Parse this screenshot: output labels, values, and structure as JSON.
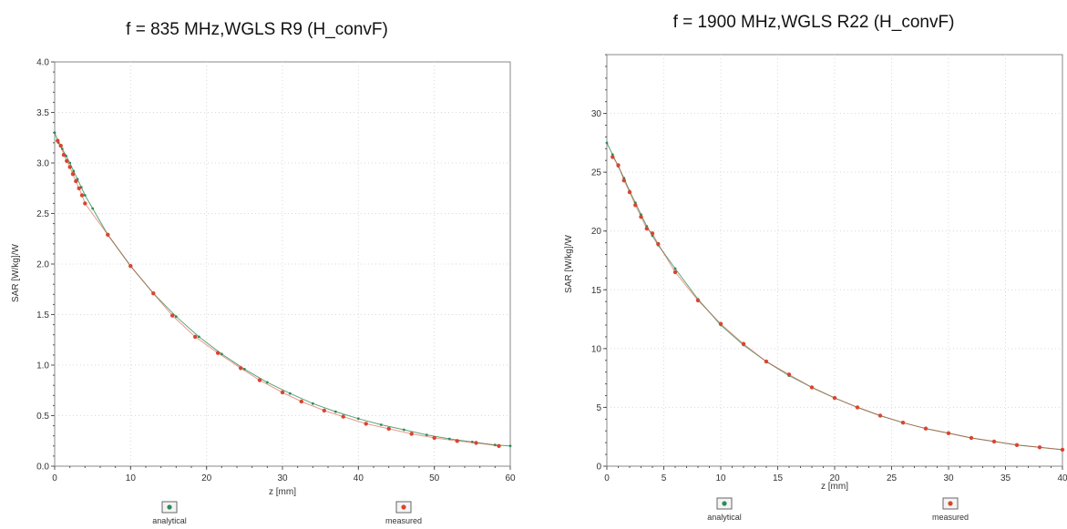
{
  "chart_data": [
    {
      "type": "line",
      "title": "f = 835 MHz,WGLS R9 (H_convF)",
      "xlabel": "z [mm]",
      "ylabel": "SAR [W/kg]/W",
      "xlim": [
        0,
        60
      ],
      "ylim": [
        0,
        4.0
      ],
      "xticks": [
        "0",
        "10",
        "20",
        "30",
        "40",
        "50",
        "60"
      ],
      "yticks": [
        "0.0",
        "0.5",
        "1.0",
        "1.5",
        "2.0",
        "2.5",
        "3.0",
        "3.5",
        "4.0"
      ],
      "grid": true,
      "series": [
        {
          "name": "analytical",
          "color": "#2e8b57",
          "x": [
            0,
            0.5,
            1,
            1.5,
            2,
            2.5,
            3,
            3.5,
            4,
            5,
            7,
            10,
            13,
            16,
            19,
            22,
            25,
            28,
            31,
            34,
            37,
            40,
            43,
            46,
            49,
            52,
            55,
            58,
            60
          ],
          "y": [
            3.3,
            3.2,
            3.14,
            3.07,
            3.0,
            2.92,
            2.84,
            2.76,
            2.68,
            2.55,
            2.29,
            1.98,
            1.71,
            1.48,
            1.28,
            1.11,
            0.96,
            0.83,
            0.72,
            0.62,
            0.54,
            0.47,
            0.41,
            0.36,
            0.31,
            0.27,
            0.24,
            0.21,
            0.2
          ]
        },
        {
          "name": "measured",
          "color": "#d9452f",
          "x": [
            0.4,
            0.8,
            1.2,
            1.6,
            2.0,
            2.4,
            2.8,
            3.2,
            3.6,
            4.0,
            7,
            10,
            13,
            15.5,
            18.5,
            21.5,
            24.5,
            27,
            30,
            32.5,
            35.5,
            38,
            41,
            44,
            47,
            50,
            53,
            55.5,
            58.5
          ],
          "y": [
            3.22,
            3.17,
            3.08,
            3.02,
            2.96,
            2.89,
            2.82,
            2.75,
            2.68,
            2.6,
            2.29,
            1.98,
            1.71,
            1.49,
            1.28,
            1.12,
            0.97,
            0.85,
            0.73,
            0.64,
            0.55,
            0.49,
            0.42,
            0.37,
            0.32,
            0.28,
            0.25,
            0.23,
            0.2
          ]
        }
      ],
      "legend": [
        "analytical",
        "measured"
      ],
      "legend_placement": "bottom"
    },
    {
      "type": "line",
      "title": "f = 1900 MHz,WGLS R22 (H_convF)",
      "xlabel": "z [mm]",
      "ylabel": "SAR [W/kg]/W",
      "xlim": [
        0,
        40
      ],
      "ylim": [
        0,
        35
      ],
      "xticks": [
        "0",
        "5",
        "10",
        "15",
        "20",
        "25",
        "30",
        "35",
        "40"
      ],
      "yticks": [
        "0",
        "5",
        "10",
        "15",
        "20",
        "25",
        "30"
      ],
      "grid": true,
      "series": [
        {
          "name": "analytical",
          "color": "#2e8b57",
          "x": [
            0,
            0.5,
            1,
            1.5,
            2,
            2.5,
            3,
            3.5,
            4,
            4.5,
            6,
            8,
            10,
            12,
            14,
            16,
            18,
            20,
            22,
            24,
            26,
            28,
            30,
            32,
            34,
            36,
            38,
            40
          ],
          "y": [
            27.5,
            26.5,
            25.5,
            24.5,
            23.4,
            22.4,
            21.4,
            20.4,
            19.6,
            18.8,
            16.8,
            14.2,
            12.0,
            10.3,
            8.9,
            7.7,
            6.7,
            5.8,
            5.0,
            4.3,
            3.7,
            3.2,
            2.8,
            2.4,
            2.1,
            1.8,
            1.6,
            1.4
          ]
        },
        {
          "name": "measured",
          "color": "#d9452f",
          "x": [
            0.5,
            1.0,
            1.5,
            2.0,
            2.5,
            3.0,
            3.5,
            4.0,
            4.5,
            6,
            8,
            10,
            12,
            14,
            16,
            18,
            20,
            22,
            24,
            26,
            28,
            30,
            32,
            34,
            36,
            38,
            40
          ],
          "y": [
            26.3,
            25.6,
            24.3,
            23.3,
            22.2,
            21.2,
            20.2,
            19.8,
            18.9,
            16.5,
            14.1,
            12.1,
            10.4,
            8.9,
            7.8,
            6.7,
            5.8,
            5.0,
            4.3,
            3.7,
            3.2,
            2.8,
            2.4,
            2.1,
            1.8,
            1.6,
            1.4
          ]
        }
      ],
      "legend": [
        "analytical",
        "measured"
      ],
      "legend_placement": "bottom"
    }
  ]
}
